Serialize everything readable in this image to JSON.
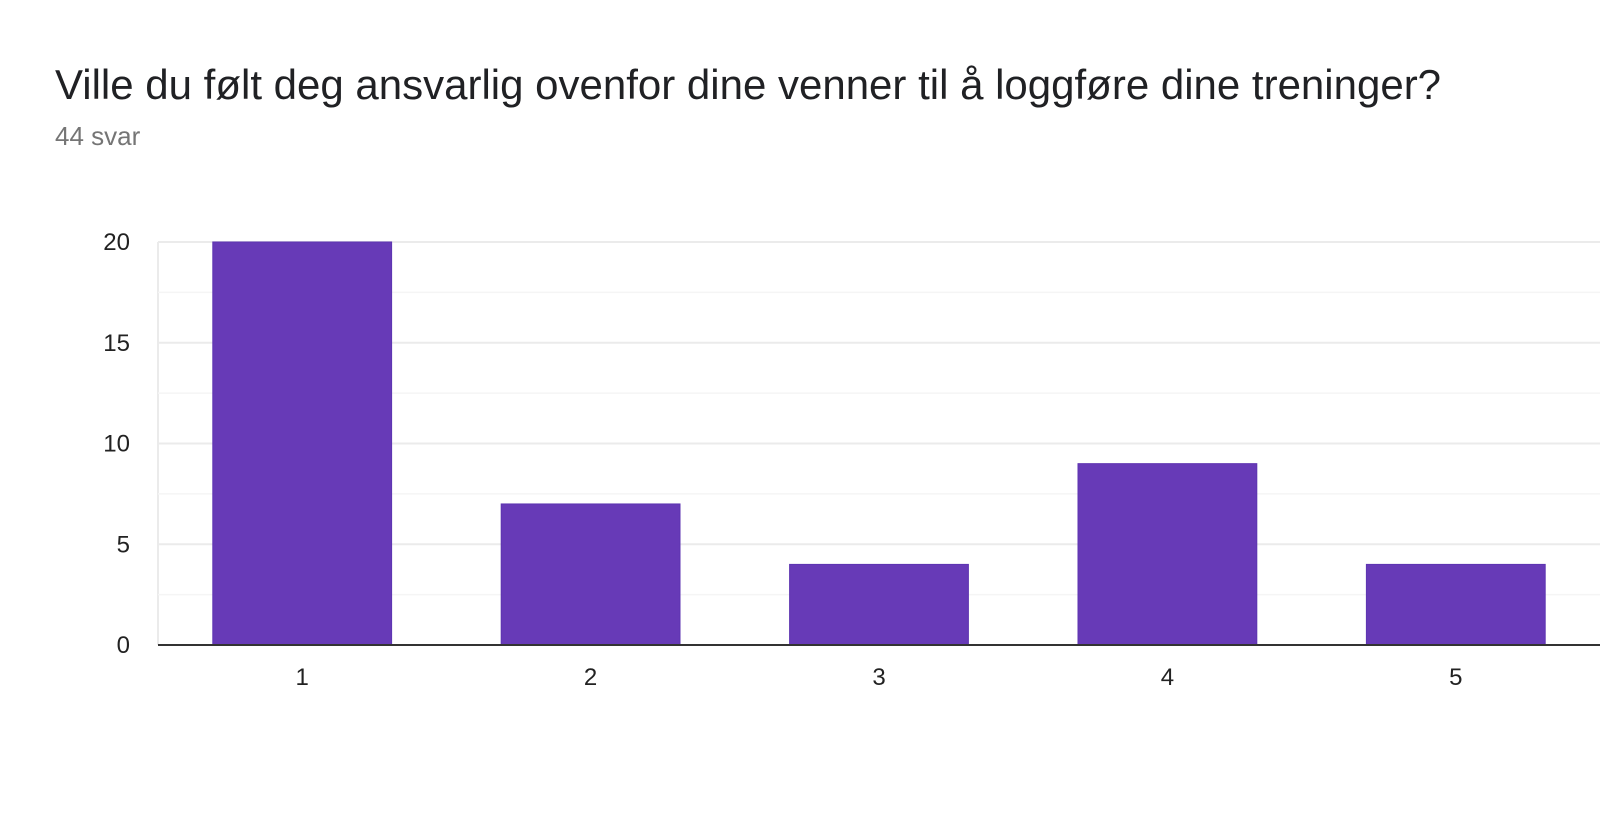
{
  "question": {
    "title": "Ville du følt deg ansvarlig ovenfor dine venner til å loggføre dine treninger?",
    "response_count": "44 svar"
  },
  "colors": {
    "bar": "#673ab7",
    "grid": "#ebebeb",
    "minor_grid": "#f5f5f5",
    "axis": "#333333"
  },
  "chart_data": {
    "type": "bar",
    "categories": [
      "1",
      "2",
      "3",
      "4",
      "5"
    ],
    "values": [
      20,
      7,
      4,
      9,
      4
    ],
    "title": "Ville du følt deg ansvarlig ovenfor dine venner til å loggføre dine treninger?",
    "xlabel": "",
    "ylabel": "",
    "ylim": [
      0,
      20
    ],
    "yticks": [
      0,
      5,
      10,
      15,
      20
    ],
    "grid": true,
    "legend": "none"
  }
}
